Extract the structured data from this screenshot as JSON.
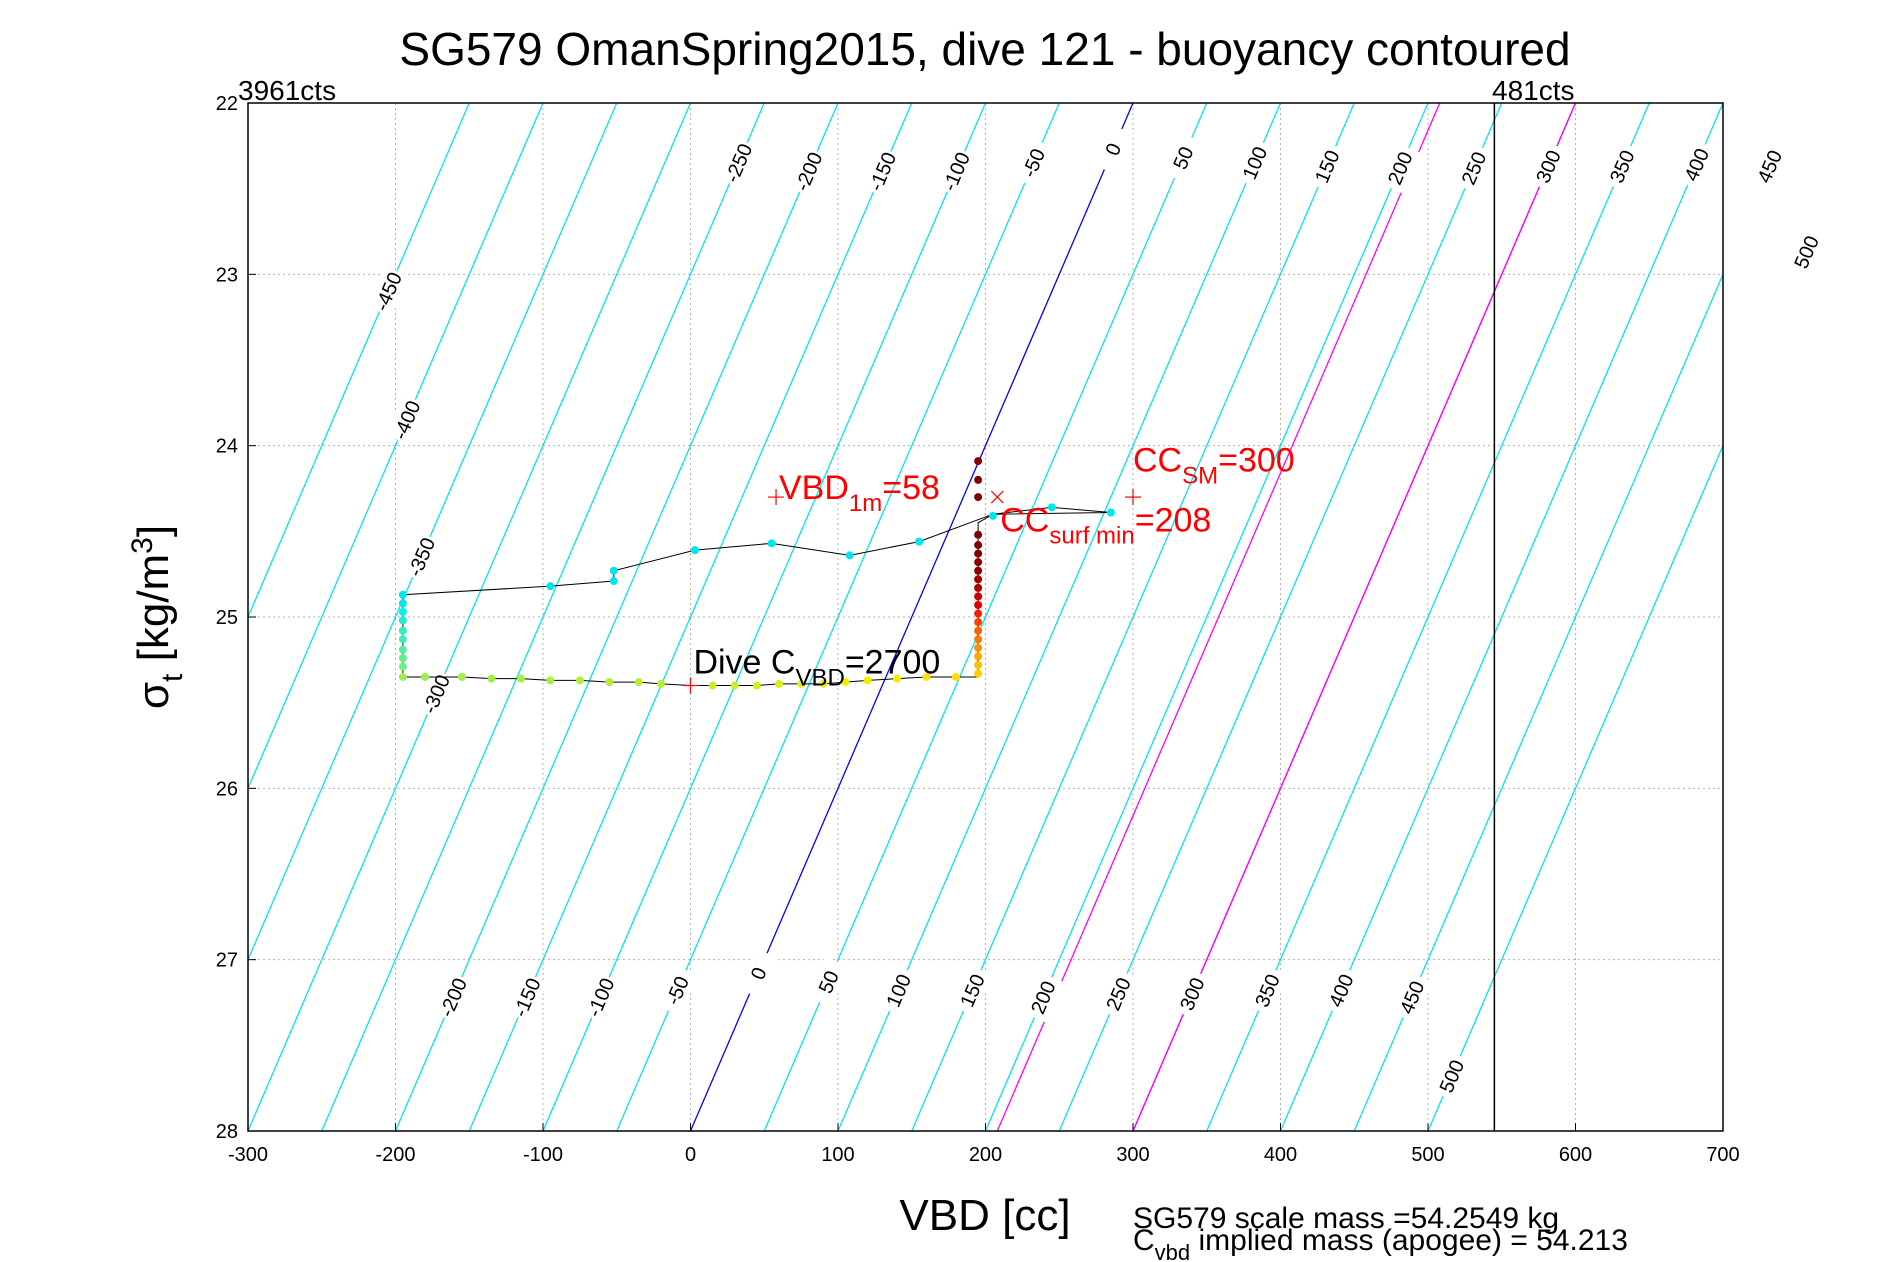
{
  "chart_data": {
    "type": "scatter",
    "title": "SG579 OmanSpring2015, dive 121 - buoyancy contoured",
    "xlabel": "VBD [cc]",
    "ylabel": "σ_t [kg/m³]",
    "ylabel_parts": {
      "sym": "σ",
      "sub": "t",
      "text": " [kg/m",
      "sup": "3",
      "close": "]"
    },
    "xlim": [
      -300,
      700
    ],
    "ylim": [
      22,
      28
    ],
    "y_reversed": true,
    "grid": true,
    "xticks": [
      -300,
      -200,
      -100,
      0,
      100,
      200,
      300,
      400,
      500,
      600,
      700
    ],
    "yticks": [
      22,
      23,
      24,
      25,
      26,
      27,
      28
    ],
    "corner_labels": {
      "left": "3961cts",
      "right": "481cts"
    },
    "vertical_limit_line": {
      "x": 545
    },
    "buoyancy_contours": {
      "slope_vbd_per_sigma": -50,
      "levels": [
        -450,
        -400,
        -350,
        -300,
        -250,
        -200,
        -150,
        -100,
        -50,
        0,
        50,
        100,
        150,
        200,
        250,
        300,
        350,
        400,
        450,
        500
      ],
      "colors": {
        "default": "#00e5ee",
        "zero": "#0000ff",
        "highlight": "#ff00ff"
      },
      "highlight_levels": [
        208,
        300
      ],
      "top_labels": [
        {
          "level": -250,
          "at": 22.35
        },
        {
          "level": -200,
          "at": 22.4
        },
        {
          "level": -150,
          "at": 22.4
        },
        {
          "level": -100,
          "at": 22.4
        },
        {
          "level": -50,
          "at": 22.35
        },
        {
          "level": 0,
          "at": 22.27
        },
        {
          "level": 50,
          "at": 22.32
        },
        {
          "level": 100,
          "at": 22.35
        },
        {
          "level": 150,
          "at": 22.37
        },
        {
          "level": 200,
          "at": 22.38
        },
        {
          "level": 250,
          "at": 22.38
        },
        {
          "level": 300,
          "at": 22.37
        },
        {
          "level": 350,
          "at": 22.37
        },
        {
          "level": 400,
          "at": 22.36
        },
        {
          "level": 450,
          "at": 22.37
        },
        {
          "level": 500,
          "at": 22.87
        }
      ],
      "left_labels": [
        {
          "level": -450,
          "at": 23.1
        },
        {
          "level": -400,
          "at": 23.85
        },
        {
          "level": -350,
          "at": 24.65
        },
        {
          "level": -300,
          "at": 25.45
        }
      ],
      "bottom_labels": [
        {
          "level": -200,
          "at": 27.22
        },
        {
          "level": -150,
          "at": 27.22
        },
        {
          "level": -100,
          "at": 27.22
        },
        {
          "level": -50,
          "at": 27.18
        },
        {
          "level": 0,
          "at": 27.08
        },
        {
          "level": 50,
          "at": 27.13
        },
        {
          "level": 100,
          "at": 27.18
        },
        {
          "level": 150,
          "at": 27.18
        },
        {
          "level": 200,
          "at": 27.22
        },
        {
          "level": 250,
          "at": 27.2
        },
        {
          "level": 300,
          "at": 27.2
        },
        {
          "level": 350,
          "at": 27.18
        },
        {
          "level": 400,
          "at": 27.18
        },
        {
          "level": 450,
          "at": 27.22
        },
        {
          "level": 500,
          "at": 27.68
        }
      ]
    },
    "series": [
      {
        "type": "line",
        "points": [
          [
            -195,
            25.35
          ],
          [
            -180,
            25.35
          ],
          [
            -155,
            25.35
          ],
          [
            -135,
            25.36
          ],
          [
            -115,
            25.36
          ],
          [
            -95,
            25.37
          ],
          [
            -75,
            25.37
          ],
          [
            -55,
            25.38
          ],
          [
            -35,
            25.38
          ],
          [
            -20,
            25.39
          ],
          [
            0,
            25.4
          ],
          [
            15,
            25.4
          ],
          [
            30,
            25.4
          ],
          [
            45,
            25.4
          ],
          [
            60,
            25.39
          ],
          [
            75,
            25.39
          ],
          [
            90,
            25.39
          ],
          [
            105,
            25.38
          ],
          [
            120,
            25.37
          ],
          [
            140,
            25.36
          ],
          [
            160,
            25.35
          ],
          [
            180,
            25.35
          ],
          [
            195,
            25.35
          ],
          [
            195,
            24.45
          ],
          [
            205,
            24.4
          ],
          [
            245,
            24.36
          ],
          [
            285,
            24.39
          ],
          [
            205,
            24.4
          ],
          [
            155,
            24.56
          ],
          [
            108,
            24.64
          ],
          [
            55,
            24.57
          ],
          [
            3,
            24.61
          ],
          [
            -52,
            24.73
          ],
          [
            -52,
            24.79
          ],
          [
            -95,
            24.82
          ],
          [
            -195,
            24.87
          ],
          [
            -195,
            25.35
          ]
        ]
      }
    ],
    "colored_points": [
      {
        "x": -195,
        "y": 24.87,
        "color": "#00e5ee"
      },
      {
        "x": -195,
        "y": 24.92,
        "color": "#00e5ee"
      },
      {
        "x": -195,
        "y": 24.97,
        "color": "#10f0e0"
      },
      {
        "x": -195,
        "y": 25.02,
        "color": "#20f0d0"
      },
      {
        "x": -195,
        "y": 25.08,
        "color": "#30f0c0"
      },
      {
        "x": -195,
        "y": 25.13,
        "color": "#40f0b0"
      },
      {
        "x": -195,
        "y": 25.19,
        "color": "#50f0a0"
      },
      {
        "x": -195,
        "y": 25.24,
        "color": "#60f090"
      },
      {
        "x": -195,
        "y": 25.29,
        "color": "#70f080"
      },
      {
        "x": -195,
        "y": 25.35,
        "color": "#9aee5a"
      },
      {
        "x": -180,
        "y": 25.35,
        "color": "#9aee50"
      },
      {
        "x": -155,
        "y": 25.35,
        "color": "#a2ee48"
      },
      {
        "x": -135,
        "y": 25.36,
        "color": "#a2ee48"
      },
      {
        "x": -115,
        "y": 25.36,
        "color": "#a8ee40"
      },
      {
        "x": -95,
        "y": 25.37,
        "color": "#a8ee40"
      },
      {
        "x": -75,
        "y": 25.37,
        "color": "#b0ee38"
      },
      {
        "x": -55,
        "y": 25.38,
        "color": "#b0ee38"
      },
      {
        "x": -35,
        "y": 25.38,
        "color": "#b8ee30"
      },
      {
        "x": -20,
        "y": 25.39,
        "color": "#b8ee30"
      },
      {
        "x": 15,
        "y": 25.4,
        "color": "#c0ee28"
      },
      {
        "x": 30,
        "y": 25.4,
        "color": "#c8ee20"
      },
      {
        "x": 45,
        "y": 25.4,
        "color": "#d0ee18"
      },
      {
        "x": 60,
        "y": 25.39,
        "color": "#d8ee10"
      },
      {
        "x": 75,
        "y": 25.39,
        "color": "#e0ee10"
      },
      {
        "x": 90,
        "y": 25.39,
        "color": "#e8ee08"
      },
      {
        "x": 105,
        "y": 25.38,
        "color": "#f0ee00"
      },
      {
        "x": 120,
        "y": 25.37,
        "color": "#f0ee00"
      },
      {
        "x": 140,
        "y": 25.36,
        "color": "#f8ea00"
      },
      {
        "x": 160,
        "y": 25.35,
        "color": "#ffe400"
      },
      {
        "x": 180,
        "y": 25.35,
        "color": "#ffdc00"
      },
      {
        "x": 195,
        "y": 25.33,
        "color": "#ffd000"
      },
      {
        "x": 195,
        "y": 25.28,
        "color": "#ffc000"
      },
      {
        "x": 195,
        "y": 25.23,
        "color": "#ffa800"
      },
      {
        "x": 195,
        "y": 25.18,
        "color": "#ff9000"
      },
      {
        "x": 195,
        "y": 25.13,
        "color": "#ff7800"
      },
      {
        "x": 195,
        "y": 25.08,
        "color": "#ff6000"
      },
      {
        "x": 195,
        "y": 25.03,
        "color": "#ff4000"
      },
      {
        "x": 195,
        "y": 24.98,
        "color": "#f02000"
      },
      {
        "x": 195,
        "y": 24.93,
        "color": "#e00000"
      },
      {
        "x": 195,
        "y": 24.88,
        "color": "#c80000"
      },
      {
        "x": 195,
        "y": 24.83,
        "color": "#b00000"
      },
      {
        "x": 195,
        "y": 24.78,
        "color": "#a00000"
      },
      {
        "x": 195,
        "y": 24.73,
        "color": "#900000"
      },
      {
        "x": 195,
        "y": 24.68,
        "color": "#880000"
      },
      {
        "x": 195,
        "y": 24.63,
        "color": "#800000"
      },
      {
        "x": 195,
        "y": 24.58,
        "color": "#800000"
      },
      {
        "x": 195,
        "y": 24.52,
        "color": "#800000"
      },
      {
        "x": 195,
        "y": 24.3,
        "color": "#800000"
      },
      {
        "x": 195,
        "y": 24.2,
        "color": "#800000"
      },
      {
        "x": 195,
        "y": 24.09,
        "color": "#800000"
      },
      {
        "x": 205,
        "y": 24.41,
        "color": "#00e5ee"
      },
      {
        "x": 245,
        "y": 24.36,
        "color": "#00e5ee"
      },
      {
        "x": 285,
        "y": 24.39,
        "color": "#00e5ee"
      },
      {
        "x": 155,
        "y": 24.56,
        "color": "#00e5ee"
      },
      {
        "x": 108,
        "y": 24.64,
        "color": "#00e5ee"
      },
      {
        "x": 55,
        "y": 24.57,
        "color": "#00e5ee"
      },
      {
        "x": 3,
        "y": 24.61,
        "color": "#00e5ee"
      },
      {
        "x": -52,
        "y": 24.73,
        "color": "#00e5ee"
      },
      {
        "x": -52,
        "y": 24.79,
        "color": "#00e5ee"
      },
      {
        "x": -95,
        "y": 24.82,
        "color": "#00e5ee"
      }
    ],
    "markers": [
      {
        "x": 58,
        "y": 24.3,
        "symbol": "+",
        "color": "#ff0000"
      },
      {
        "x": 300,
        "y": 24.3,
        "symbol": "+",
        "color": "#ff0000"
      },
      {
        "x": 208,
        "y": 24.3,
        "symbol": "x",
        "color": "#ff0000"
      },
      {
        "x": 0,
        "y": 25.4,
        "symbol": "+",
        "color": "#ff0000"
      }
    ],
    "annotations": [
      {
        "x": 60,
        "y": 24.31,
        "color": "#ff0000",
        "main": "VBD",
        "sub": "1m",
        "rest": "=58"
      },
      {
        "x": 300,
        "y": 24.15,
        "color": "#ff0000",
        "main": "CC",
        "sub": "SM",
        "rest": "=300"
      },
      {
        "x": 210,
        "y": 24.5,
        "color": "#ff0000",
        "main": "CC",
        "sub": "surf min",
        "rest": "=208"
      },
      {
        "x": 2,
        "y": 25.33,
        "color": "#000000",
        "main": "Dive C",
        "sub": "VBD",
        "rest": "=2700"
      }
    ],
    "footer": {
      "line1": "SG579 scale mass =54.2549 kg",
      "line2_main": "C",
      "line2_sub": "vbd",
      "line2_rest": " implied mass (apogee) = 54.213"
    }
  }
}
